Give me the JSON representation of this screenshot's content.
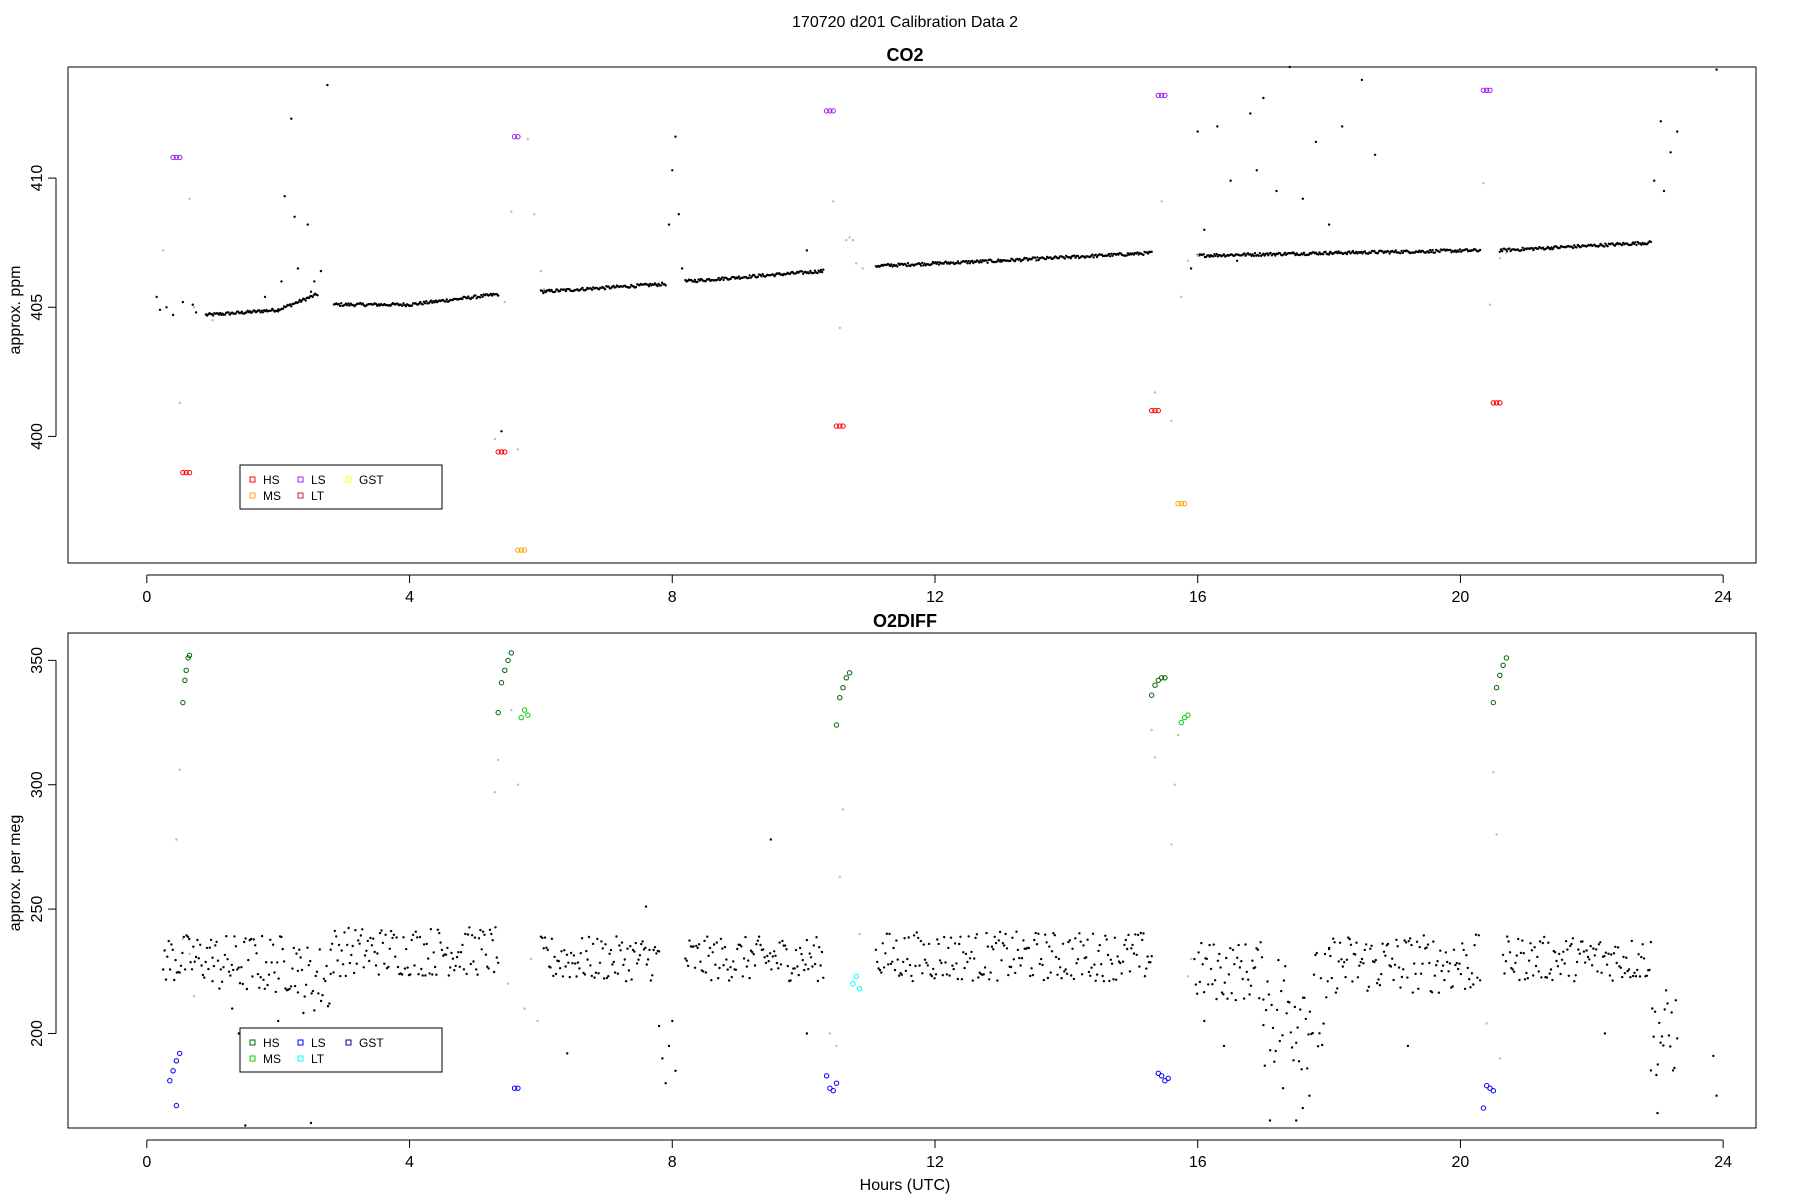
{
  "figure": {
    "title": "170720   d201   Calibration Data 2",
    "xlabel": "Hours (UTC)"
  },
  "colors": {
    "ambient": "#000000",
    "flush": "#bbbbbb",
    "co2_HS": "#ff0000",
    "co2_MS": "#ffa500",
    "co2_LS": "#a020f0",
    "co2_LT": "#cd2626",
    "co2_GST": "#ffff00",
    "o2_HS": "#006400",
    "o2_MS": "#00cd00",
    "o2_LS": "#0000ff",
    "o2_LT": "#00ffff",
    "o2_GST": "#00008b"
  },
  "chart_data": [
    {
      "type": "scatter",
      "title": "CO2",
      "xlabel": "",
      "ylabel": "approx. ppm",
      "xlim": [
        -1.2,
        24.5
      ],
      "ylim": [
        395.1,
        414.3
      ],
      "xticks": [
        0,
        4,
        8,
        12,
        16,
        20,
        24
      ],
      "yticks": [
        400,
        405,
        410
      ],
      "legend": {
        "position": "bottom-left",
        "entries": [
          "HS",
          "MS",
          "LS",
          "LT",
          "GST"
        ]
      },
      "ambient_segments": [
        {
          "x": [
            0.9,
            1.5,
            2.0,
            2.6
          ],
          "y": [
            404.7,
            404.8,
            404.9,
            405.5
          ]
        },
        {
          "x": [
            2.85,
            4.0,
            5.35
          ],
          "y": [
            405.1,
            405.1,
            405.5
          ]
        },
        {
          "x": [
            6.0,
            7.9
          ],
          "y": [
            405.6,
            405.9
          ]
        },
        {
          "x": [
            8.2,
            10.3
          ],
          "y": [
            406.0,
            406.4
          ]
        },
        {
          "x": [
            11.1,
            13.0,
            15.3
          ],
          "y": [
            406.6,
            406.8,
            407.1
          ]
        },
        {
          "x": [
            16.0,
            18.0,
            20.3
          ],
          "y": [
            407.0,
            407.1,
            407.2
          ]
        },
        {
          "x": [
            20.6,
            22.9
          ],
          "y": [
            407.2,
            407.5
          ]
        }
      ],
      "ambient_scatter": {
        "x": [
          0.15,
          0.2,
          0.3,
          0.4,
          0.55,
          0.7,
          0.75,
          1.8,
          2.05,
          2.1,
          2.2,
          2.25,
          2.3,
          2.45,
          2.55,
          2.65,
          2.75,
          2.5,
          5.4,
          7.95,
          8.0,
          8.05,
          8.1,
          8.15,
          10.05,
          15.9,
          16.0,
          16.1,
          16.3,
          16.5,
          16.6,
          16.8,
          16.9,
          17.0,
          17.2,
          17.4,
          17.6,
          17.8,
          18.0,
          18.2,
          18.5,
          18.7,
          22.95,
          23.05,
          23.1,
          23.2,
          23.3,
          23.9
        ],
        "y": [
          405.4,
          404.9,
          405.0,
          404.7,
          405.2,
          405.1,
          404.8,
          405.4,
          406.0,
          409.3,
          412.3,
          408.5,
          406.5,
          408.2,
          406.0,
          406.4,
          413.6,
          405.6,
          400.2,
          408.2,
          410.3,
          411.6,
          408.6,
          406.5,
          407.2,
          406.5,
          411.8,
          408.0,
          412.0,
          409.9,
          406.8,
          412.5,
          410.3,
          413.1,
          409.5,
          414.3,
          409.2,
          411.4,
          408.2,
          412.0,
          413.8,
          410.9,
          409.9,
          412.2,
          409.5,
          411.0,
          411.8,
          414.2
        ]
      },
      "flush_scatter": {
        "x": [
          0.25,
          0.5,
          0.65,
          0.72,
          1.0,
          5.3,
          5.45,
          5.55,
          5.65,
          5.8,
          5.9,
          6.0,
          6.05,
          10.45,
          10.55,
          10.65,
          10.7,
          10.75,
          10.8,
          10.9,
          15.35,
          15.45,
          15.6,
          15.75,
          15.85,
          16.0,
          20.35,
          20.45,
          20.6,
          20.7
        ],
        "y": [
          407.2,
          401.3,
          409.2,
          405.0,
          404.5,
          399.9,
          405.2,
          408.7,
          399.5,
          411.5,
          408.6,
          406.4,
          405.7,
          409.1,
          404.2,
          407.6,
          407.7,
          407.6,
          406.7,
          406.5,
          401.7,
          409.1,
          400.6,
          405.4,
          406.8,
          407.0,
          409.8,
          405.1,
          406.9,
          407.1
        ]
      },
      "calibration": [
        {
          "tank": "HS",
          "x": [
            0.55,
            0.6,
            0.65
          ],
          "y": [
            398.6,
            398.6,
            398.6
          ]
        },
        {
          "tank": "LS",
          "x": [
            0.4,
            0.45,
            0.5
          ],
          "y": [
            410.8,
            410.8,
            410.8
          ]
        },
        {
          "tank": "HS",
          "x": [
            5.35,
            5.4,
            5.45
          ],
          "y": [
            399.4,
            399.4,
            399.4
          ]
        },
        {
          "tank": "MS",
          "x": [
            5.65,
            5.7,
            5.75
          ],
          "y": [
            395.6,
            395.6,
            395.6
          ]
        },
        {
          "tank": "LS",
          "x": [
            5.6,
            5.65
          ],
          "y": [
            411.6,
            411.6
          ]
        },
        {
          "tank": "LS",
          "x": [
            10.35,
            10.4,
            10.45
          ],
          "y": [
            412.6,
            412.6,
            412.6
          ]
        },
        {
          "tank": "HS",
          "x": [
            10.5,
            10.55,
            10.6
          ],
          "y": [
            400.4,
            400.4,
            400.4
          ]
        },
        {
          "tank": "LS",
          "x": [
            15.4,
            15.45,
            15.5
          ],
          "y": [
            413.2,
            413.2,
            413.2
          ]
        },
        {
          "tank": "HS",
          "x": [
            15.3,
            15.35,
            15.4
          ],
          "y": [
            401.0,
            401.0,
            401.0
          ]
        },
        {
          "tank": "MS",
          "x": [
            15.7,
            15.75,
            15.8
          ],
          "y": [
            397.4,
            397.4,
            397.4
          ]
        },
        {
          "tank": "LS",
          "x": [
            20.35,
            20.4,
            20.45
          ],
          "y": [
            413.4,
            413.4,
            413.4
          ]
        },
        {
          "tank": "HS",
          "x": [
            20.5,
            20.55,
            20.6
          ],
          "y": [
            401.3,
            401.3,
            401.3
          ]
        }
      ]
    },
    {
      "type": "scatter",
      "title": "O2DIFF",
      "xlabel": "Hours (UTC)",
      "ylabel": "approx. per meg",
      "xlim": [
        -1.2,
        24.5
      ],
      "ylim": [
        162,
        361
      ],
      "xticks": [
        0,
        4,
        8,
        12,
        16,
        20,
        24
      ],
      "yticks": [
        200,
        250,
        300,
        350
      ],
      "legend": {
        "position": "bottom-left",
        "entries": [
          "HS",
          "MS",
          "LS",
          "LT",
          "GST"
        ]
      },
      "ambient_bands": [
        {
          "x0": 0.25,
          "x1": 1.0,
          "center": 230,
          "spread": 10
        },
        {
          "x0": 1.0,
          "x1": 2.3,
          "center": 228,
          "spread": 12
        },
        {
          "x0": 2.3,
          "x1": 2.8,
          "center": 222,
          "spread": 14
        },
        {
          "x0": 2.8,
          "x1": 5.35,
          "center": 233,
          "spread": 10
        },
        {
          "x0": 6.0,
          "x1": 7.8,
          "center": 230,
          "spread": 9
        },
        {
          "x0": 8.2,
          "x1": 10.3,
          "center": 230,
          "spread": 9
        },
        {
          "x0": 11.1,
          "x1": 15.3,
          "center": 231,
          "spread": 10
        },
        {
          "x0": 15.95,
          "x1": 17.0,
          "center": 225,
          "spread": 12
        },
        {
          "x0": 17.0,
          "x1": 18.0,
          "center": 210,
          "spread": 25
        },
        {
          "x0": 18.0,
          "x1": 20.3,
          "center": 228,
          "spread": 12
        },
        {
          "x0": 20.65,
          "x1": 22.9,
          "center": 230,
          "spread": 9
        },
        {
          "x0": 22.9,
          "x1": 23.3,
          "center": 200,
          "spread": 18
        }
      ],
      "ambient_scatter": {
        "x": [
          1.3,
          1.4,
          1.5,
          2.0,
          2.5,
          6.4,
          7.6,
          7.8,
          7.85,
          7.9,
          7.95,
          8.0,
          8.05,
          9.5,
          10.05,
          16.1,
          16.4,
          17.1,
          17.3,
          17.5,
          17.6,
          17.7,
          19.2,
          22.2,
          23.0,
          23.85,
          23.9
        ],
        "y": [
          210,
          200,
          163,
          205,
          164,
          192,
          251,
          203,
          190,
          180,
          195,
          205,
          185,
          278,
          200,
          205,
          195,
          165,
          178,
          165,
          170,
          175,
          195,
          200,
          168,
          191,
          175
        ]
      },
      "flush_scatter": {
        "x": [
          0.45,
          0.5,
          0.55,
          0.65,
          0.72,
          5.3,
          5.35,
          5.5,
          5.55,
          5.65,
          5.75,
          5.85,
          5.95,
          10.4,
          10.5,
          10.55,
          10.6,
          10.85,
          15.3,
          15.35,
          15.6,
          15.65,
          15.7,
          15.85,
          15.9,
          20.4,
          20.5,
          20.55,
          20.6
        ],
        "y": [
          278,
          306,
          238,
          232,
          215,
          297,
          310,
          220,
          330,
          300,
          210,
          230,
          205,
          200,
          195,
          263,
          290,
          240,
          322,
          311,
          276,
          300,
          320,
          223,
          230,
          204,
          305,
          280,
          190
        ]
      },
      "calibration": [
        {
          "tank": "HS",
          "x": [
            0.55,
            0.58,
            0.6,
            0.63,
            0.65
          ],
          "y": [
            333,
            342,
            346,
            351,
            352
          ]
        },
        {
          "tank": "LS",
          "x": [
            0.35,
            0.4,
            0.45,
            0.5,
            0.45
          ],
          "y": [
            181,
            185,
            189,
            192,
            171
          ]
        },
        {
          "tank": "HS",
          "x": [
            5.35,
            5.4,
            5.45,
            5.5,
            5.55
          ],
          "y": [
            329,
            341,
            346,
            350,
            353
          ]
        },
        {
          "tank": "MS",
          "x": [
            5.7,
            5.75,
            5.8
          ],
          "y": [
            327,
            330,
            328
          ]
        },
        {
          "tank": "LS",
          "x": [
            5.6,
            5.65
          ],
          "y": [
            178,
            178
          ]
        },
        {
          "tank": "HS",
          "x": [
            10.5,
            10.55,
            10.6,
            10.65,
            10.7
          ],
          "y": [
            324,
            335,
            339,
            343,
            345
          ]
        },
        {
          "tank": "LS",
          "x": [
            10.35,
            10.4,
            10.45,
            10.5
          ],
          "y": [
            183,
            178,
            177,
            180
          ]
        },
        {
          "tank": "LT",
          "x": [
            10.75,
            10.8,
            10.85
          ],
          "y": [
            220,
            223,
            218
          ]
        },
        {
          "tank": "HS",
          "x": [
            15.3,
            15.35,
            15.4,
            15.45,
            15.5
          ],
          "y": [
            336,
            340,
            342,
            343,
            343
          ]
        },
        {
          "tank": "MS",
          "x": [
            15.75,
            15.8,
            15.85
          ],
          "y": [
            325,
            327,
            328
          ]
        },
        {
          "tank": "LS",
          "x": [
            15.4,
            15.45,
            15.5,
            15.55
          ],
          "y": [
            184,
            183,
            181,
            182
          ]
        },
        {
          "tank": "HS",
          "x": [
            20.5,
            20.55,
            20.6,
            20.65,
            20.7
          ],
          "y": [
            333,
            339,
            344,
            348,
            351
          ]
        },
        {
          "tank": "LS",
          "x": [
            20.35,
            20.4,
            20.45,
            20.5
          ],
          "y": [
            170,
            179,
            178,
            177
          ]
        }
      ]
    }
  ]
}
